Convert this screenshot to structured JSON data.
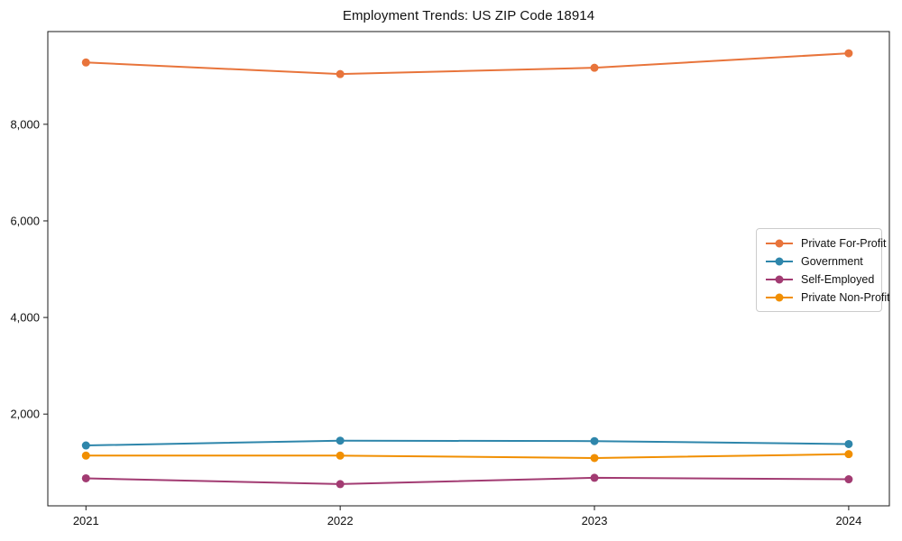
{
  "chart_data": {
    "type": "line",
    "title": "Employment Trends: US ZIP Code 18914",
    "xlabel": "",
    "ylabel": "",
    "categories": [
      "2021",
      "2022",
      "2023",
      "2024"
    ],
    "series": [
      {
        "name": "Private For-Profit",
        "color": "#E8743B",
        "values": [
          9280,
          9040,
          9170,
          9470
        ]
      },
      {
        "name": "Government",
        "color": "#2E86AB",
        "values": [
          1350,
          1450,
          1440,
          1380
        ]
      },
      {
        "name": "Self-Employed",
        "color": "#A23B72",
        "values": [
          670,
          550,
          680,
          650
        ]
      },
      {
        "name": "Private Non-Profit",
        "color": "#F18F01",
        "values": [
          1140,
          1140,
          1090,
          1170
        ]
      }
    ],
    "y_ticks": [
      2000,
      4000,
      6000,
      8000
    ],
    "y_tick_labels": [
      "2,000",
      "4,000",
      "6,000",
      "8,000"
    ],
    "xlim": [
      2020.85,
      2024.16
    ],
    "ylim": [
      100,
      9920
    ],
    "grid": false,
    "legend_position": "center-right",
    "marker": "circle",
    "axis_color": "#1a1a1a"
  }
}
